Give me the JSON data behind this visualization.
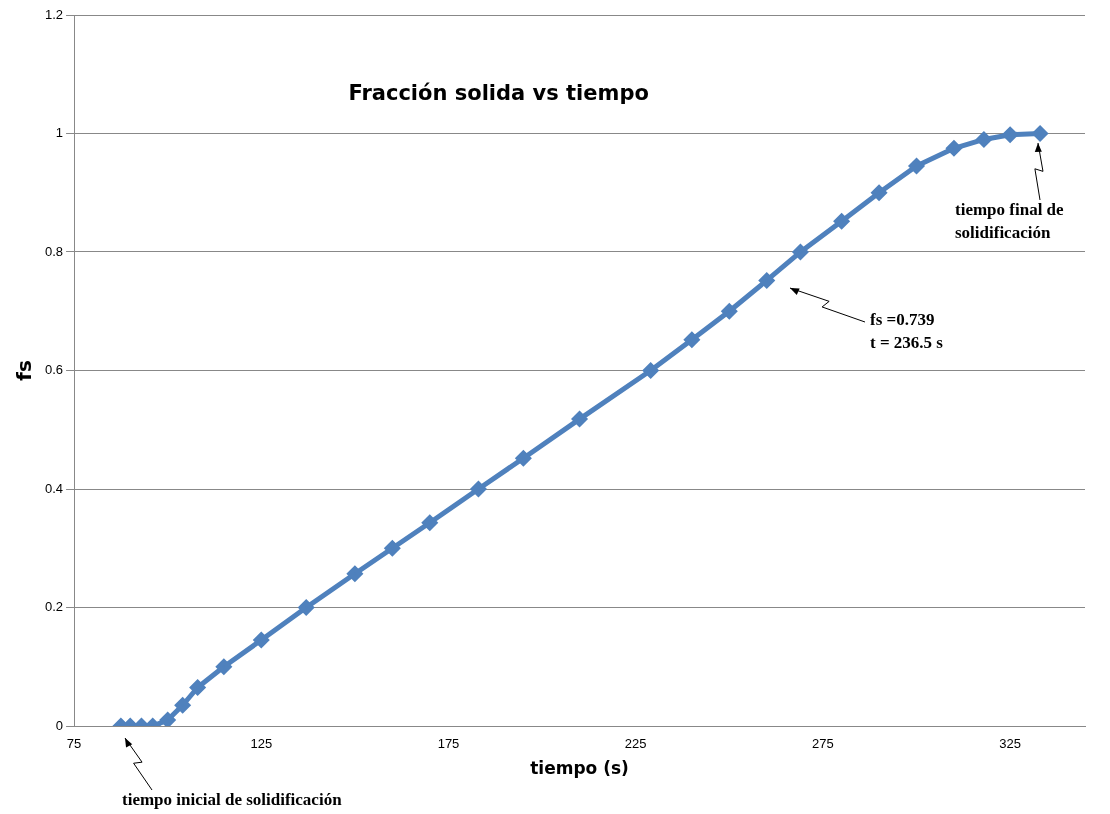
{
  "chart_data": {
    "type": "line",
    "title": "Fracción solida vs tiempo",
    "xlabel": "tiempo (s)",
    "ylabel": "fs",
    "xlim": [
      75,
      345
    ],
    "xticks": [
      75,
      125,
      175,
      225,
      275,
      325
    ],
    "ylim": [
      0,
      1.2
    ],
    "yticks": [
      0,
      0.2,
      0.4,
      0.6,
      0.8,
      1,
      1.2
    ],
    "grid": "y",
    "marker": "diamond",
    "line_style": "solid",
    "series": [
      {
        "color": "#4f81bd",
        "x": [
          87.5,
          90,
          93,
          96,
          100,
          104,
          108,
          115,
          125,
          137,
          150,
          160,
          170,
          183,
          195,
          210,
          229,
          240,
          250,
          260,
          269,
          280,
          290,
          300,
          310,
          318,
          325,
          333
        ],
        "values": [
          0,
          0,
          0,
          0,
          0.01,
          0.035,
          0.065,
          0.1,
          0.145,
          0.2,
          0.257,
          0.3,
          0.343,
          0.4,
          0.452,
          0.518,
          0.6,
          0.652,
          0.7,
          0.752,
          0.8,
          0.852,
          0.9,
          0.945,
          0.975,
          0.99,
          0.998,
          1.0
        ]
      }
    ],
    "annotations": [
      "fs =0.739\nt = 236.5 s",
      "tiempo final de\nsolidificación",
      "tiempo inicial de solidificación"
    ]
  }
}
